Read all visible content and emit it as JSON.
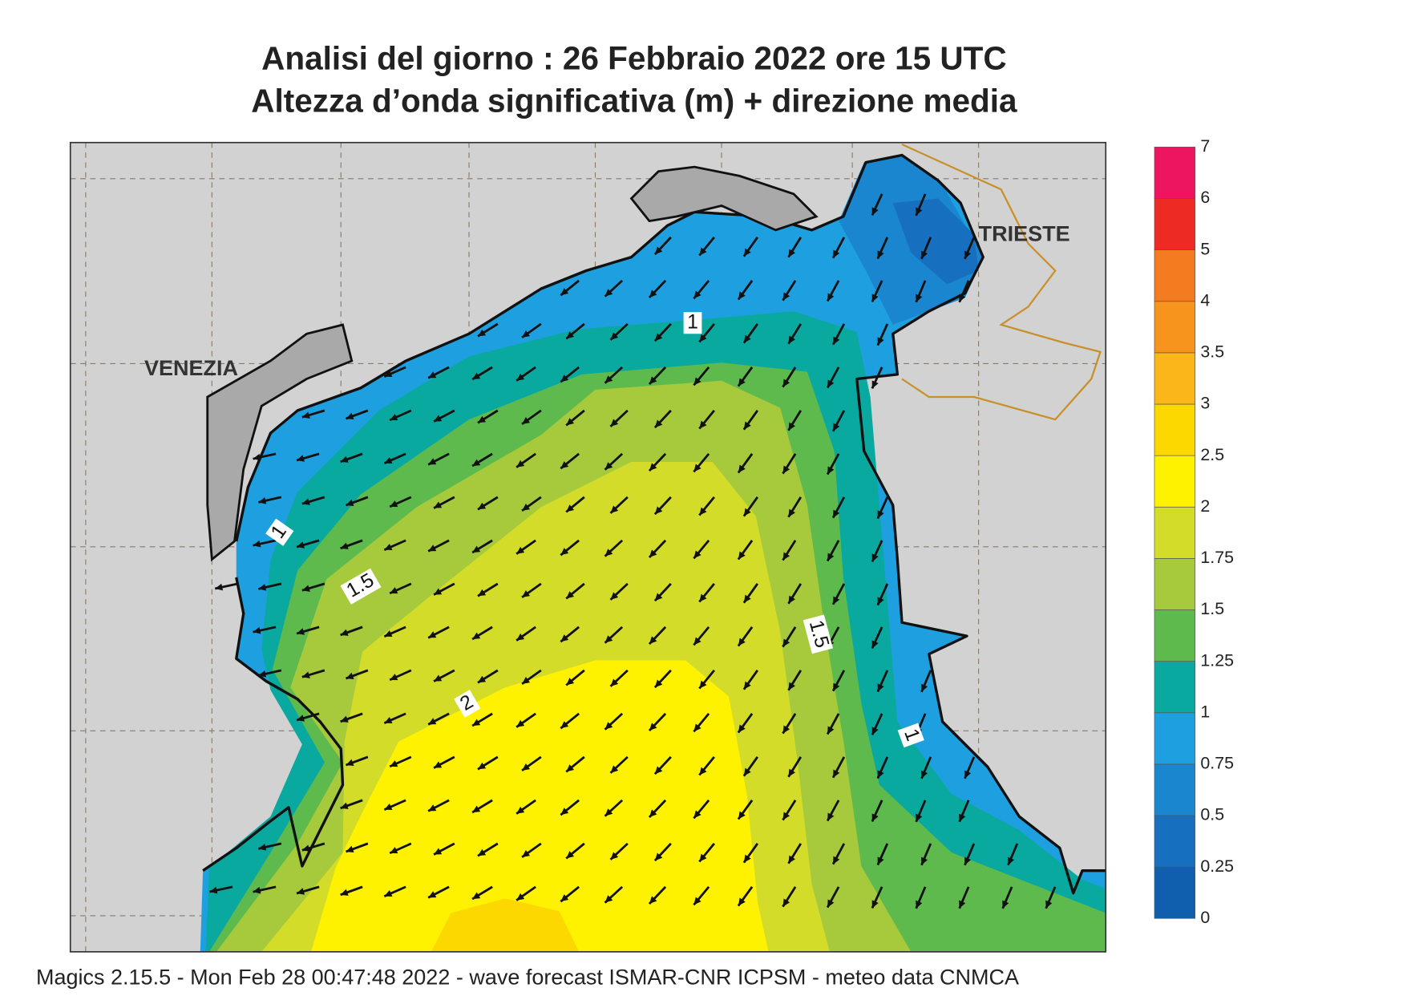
{
  "header": {
    "title": "Analisi del giorno :  26  Febbraio 2022   ore 15 UTC",
    "subtitle": "Altezza d’onda significativa (m) + direzione media"
  },
  "places": [
    "VENEZIA",
    "TRIESTE"
  ],
  "contour_labels": [
    1,
    1,
    1.5,
    1.5,
    2,
    1
  ],
  "colorbar": {
    "levels": [
      0,
      0.25,
      0.5,
      0.75,
      1,
      1.25,
      1.5,
      1.75,
      2,
      2.5,
      3,
      3.5,
      4,
      5,
      6,
      7
    ],
    "colors": [
      "#0f5fae",
      "#1670bf",
      "#1a86cf",
      "#1ea0e0",
      "#0aa9a0",
      "#5fba4e",
      "#a6ca3b",
      "#d3dc29",
      "#fff200",
      "#fcd700",
      "#fbb61a",
      "#f7941d",
      "#f47b20",
      "#ee2a24",
      "#ee1560"
    ]
  },
  "footer": "Magics 2.15.5 - Mon Feb 28 00:47:48 2022 - wave forecast  ISMAR-CNR  ICPSM - meteo data   CNMCA"
}
